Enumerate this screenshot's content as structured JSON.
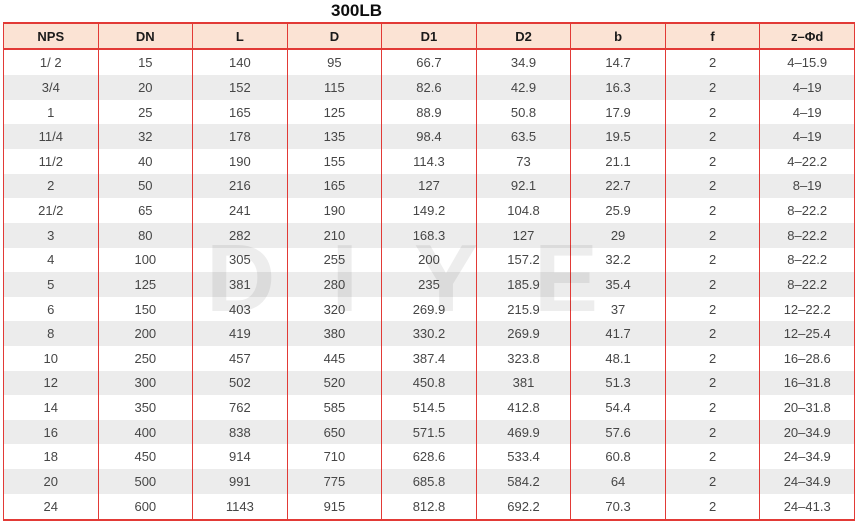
{
  "title": "300LB",
  "watermark": "DIYE",
  "colors": {
    "border_red": "#e23a36",
    "header_bg": "#fbe3d4",
    "stripe_gray": "#ececec",
    "text": "#464646"
  },
  "table": {
    "headers": [
      "NPS",
      "DN",
      "L",
      "D",
      "D1",
      "D2",
      "b",
      "f",
      "z–Φd"
    ],
    "rows": [
      [
        "1/ 2",
        "15",
        "140",
        "95",
        "66.7",
        "34.9",
        "14.7",
        "2",
        "4–15.9"
      ],
      [
        "3/4",
        "20",
        "152",
        "115",
        "82.6",
        "42.9",
        "16.3",
        "2",
        "4–19"
      ],
      [
        "1",
        "25",
        "165",
        "125",
        "88.9",
        "50.8",
        "17.9",
        "2",
        "4–19"
      ],
      [
        "11/4",
        "32",
        "178",
        "135",
        "98.4",
        "63.5",
        "19.5",
        "2",
        "4–19"
      ],
      [
        "11/2",
        "40",
        "190",
        "155",
        "114.3",
        "73",
        "21.1",
        "2",
        "4–22.2"
      ],
      [
        "2",
        "50",
        "216",
        "165",
        "127",
        "92.1",
        "22.7",
        "2",
        "8–19"
      ],
      [
        "21/2",
        "65",
        "241",
        "190",
        "149.2",
        "104.8",
        "25.9",
        "2",
        "8–22.2"
      ],
      [
        "3",
        "80",
        "282",
        "210",
        "168.3",
        "127",
        "29",
        "2",
        "8–22.2"
      ],
      [
        "4",
        "100",
        "305",
        "255",
        "200",
        "157.2",
        "32.2",
        "2",
        "8–22.2"
      ],
      [
        "5",
        "125",
        "381",
        "280",
        "235",
        "185.9",
        "35.4",
        "2",
        "8–22.2"
      ],
      [
        "6",
        "150",
        "403",
        "320",
        "269.9",
        "215.9",
        "37",
        "2",
        "12–22.2"
      ],
      [
        "8",
        "200",
        "419",
        "380",
        "330.2",
        "269.9",
        "41.7",
        "2",
        "12–25.4"
      ],
      [
        "10",
        "250",
        "457",
        "445",
        "387.4",
        "323.8",
        "48.1",
        "2",
        "16–28.6"
      ],
      [
        "12",
        "300",
        "502",
        "520",
        "450.8",
        "381",
        "51.3",
        "2",
        "16–31.8"
      ],
      [
        "14",
        "350",
        "762",
        "585",
        "514.5",
        "412.8",
        "54.4",
        "2",
        "20–31.8"
      ],
      [
        "16",
        "400",
        "838",
        "650",
        "571.5",
        "469.9",
        "57.6",
        "2",
        "20–34.9"
      ],
      [
        "18",
        "450",
        "914",
        "710",
        "628.6",
        "533.4",
        "60.8",
        "2",
        "24–34.9"
      ],
      [
        "20",
        "500",
        "991",
        "775",
        "685.8",
        "584.2",
        "64",
        "2",
        "24–34.9"
      ],
      [
        "24",
        "600",
        "1143",
        "915",
        "812.8",
        "692.2",
        "70.3",
        "2",
        "24–41.3"
      ]
    ]
  }
}
